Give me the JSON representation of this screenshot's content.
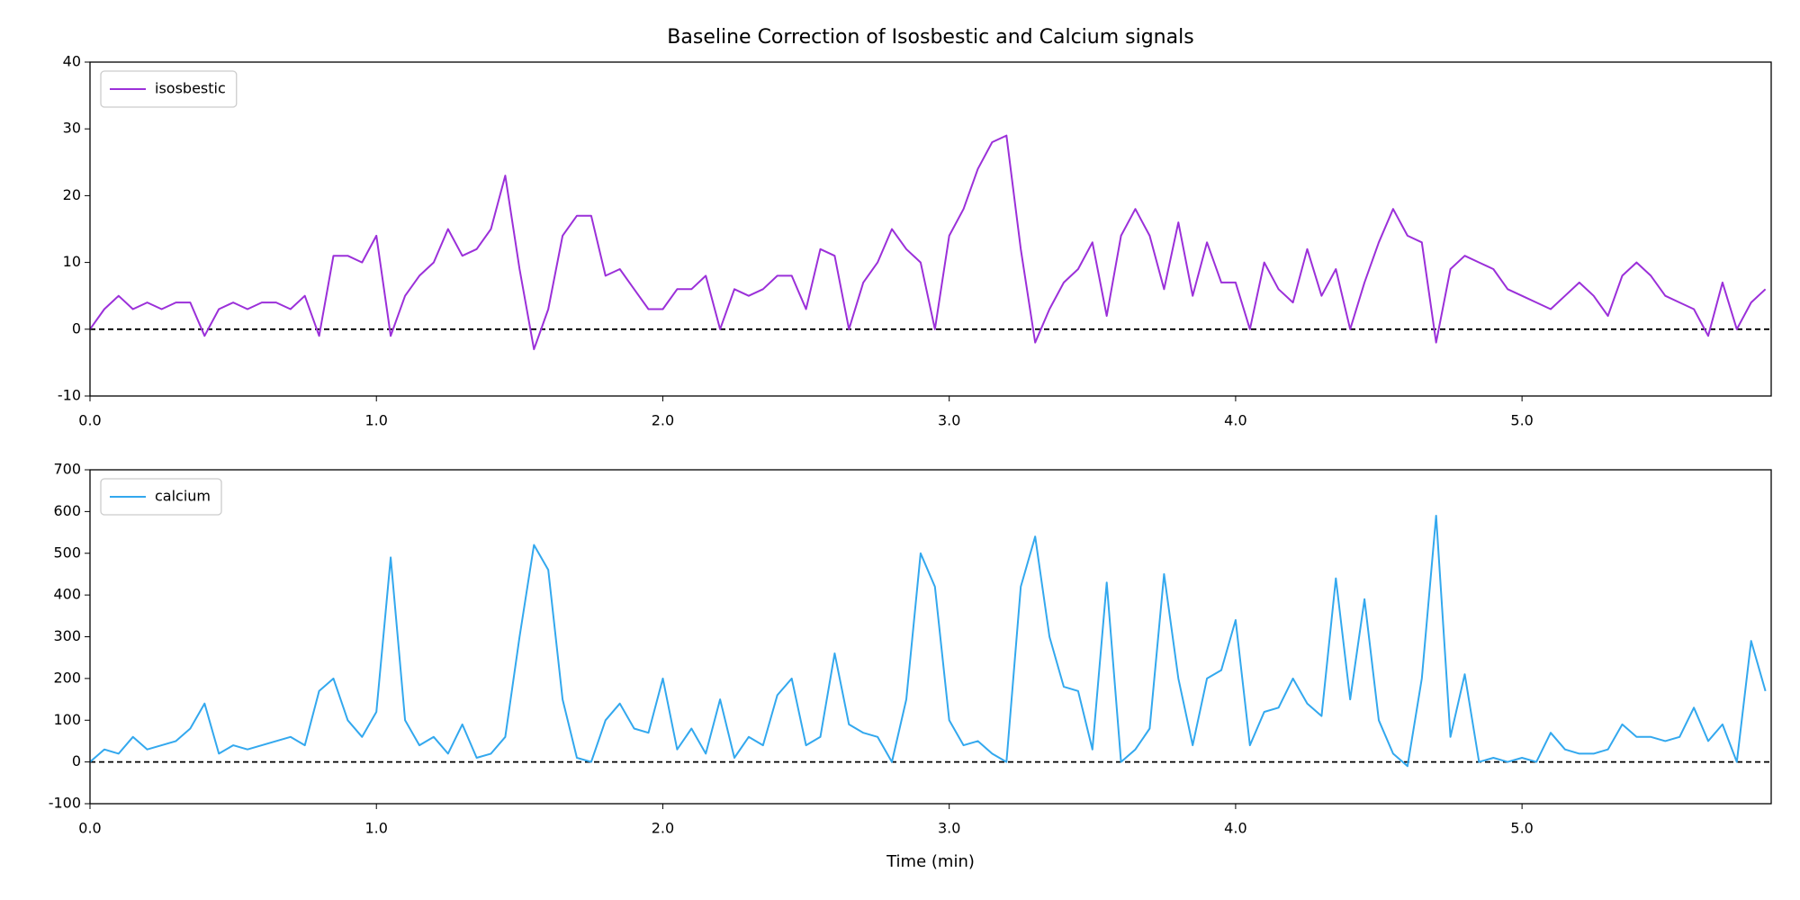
{
  "chart_data": [
    {
      "type": "line",
      "title": "Baseline Correction of Isosbestic and Calcium signals",
      "x": [
        0,
        0.05,
        0.1,
        0.15,
        0.2,
        0.25,
        0.3,
        0.35,
        0.4,
        0.45,
        0.5,
        0.55,
        0.6,
        0.65,
        0.7,
        0.75,
        0.8,
        0.85,
        0.9,
        0.95,
        1.0,
        1.05,
        1.1,
        1.15,
        1.2,
        1.25,
        1.3,
        1.35,
        1.4,
        1.45,
        1.5,
        1.55,
        1.6,
        1.65,
        1.7,
        1.75,
        1.8,
        1.85,
        1.9,
        1.95,
        2.0,
        2.05,
        2.1,
        2.15,
        2.2,
        2.25,
        2.3,
        2.35,
        2.4,
        2.45,
        2.5,
        2.55,
        2.6,
        2.65,
        2.7,
        2.75,
        2.8,
        2.85,
        2.9,
        2.95,
        3.0,
        3.05,
        3.1,
        3.15,
        3.2,
        3.25,
        3.3,
        3.35,
        3.4,
        3.45,
        3.5,
        3.55,
        3.6,
        3.65,
        3.7,
        3.75,
        3.8,
        3.85,
        3.9,
        3.95,
        4.0,
        4.05,
        4.1,
        4.15,
        4.2,
        4.25,
        4.3,
        4.35,
        4.4,
        4.45,
        4.5,
        4.55,
        4.6,
        4.65,
        4.7,
        4.75,
        4.8,
        4.85,
        4.9,
        4.95,
        5.0,
        5.05,
        5.1,
        5.15,
        5.2,
        5.25,
        5.3,
        5.35,
        5.4,
        5.45,
        5.5,
        5.55,
        5.6,
        5.65,
        5.7,
        5.75,
        5.8,
        5.85
      ],
      "series": [
        {
          "name": "isosbestic",
          "color": "#9b30d9",
          "values": [
            0,
            3,
            5,
            3,
            4,
            3,
            4,
            4,
            -1,
            3,
            4,
            3,
            4,
            4,
            3,
            5,
            -1,
            11,
            11,
            10,
            14,
            -1,
            5,
            8,
            10,
            15,
            11,
            12,
            15,
            23,
            9,
            -3,
            3,
            14,
            17,
            17,
            8,
            9,
            6,
            3,
            3,
            6,
            6,
            8,
            0,
            6,
            5,
            6,
            8,
            8,
            3,
            12,
            11,
            0,
            7,
            10,
            15,
            12,
            10,
            0,
            14,
            18,
            24,
            28,
            29,
            12,
            -2,
            3,
            7,
            9,
            13,
            2,
            14,
            18,
            14,
            6,
            16,
            5,
            13,
            7,
            7,
            0,
            10,
            6,
            4,
            12,
            5,
            9,
            0,
            7,
            13,
            18,
            14,
            13,
            -2,
            9,
            11,
            10,
            9,
            6,
            5,
            4,
            3,
            5,
            7,
            5,
            2,
            8,
            10,
            8,
            5,
            4,
            3,
            -1,
            7,
            0,
            4,
            6
          ]
        }
      ],
      "baseline": 0,
      "legend": "upper left",
      "xlim": [
        0,
        5.87
      ],
      "xticks": [
        {
          "value": 0,
          "label": "0.0"
        },
        {
          "value": 1,
          "label": "1.0"
        },
        {
          "value": 2,
          "label": "2.0"
        },
        {
          "value": 3,
          "label": "3.0"
        },
        {
          "value": 4,
          "label": "4.0"
        },
        {
          "value": 5,
          "label": "5.0"
        }
      ],
      "ylim": [
        -10,
        40
      ],
      "yticks": [
        -10,
        0,
        10,
        20,
        30,
        40
      ],
      "grid": false
    },
    {
      "type": "line",
      "x_label": "Time (min)",
      "x": [
        0,
        0.05,
        0.1,
        0.15,
        0.2,
        0.25,
        0.3,
        0.35,
        0.4,
        0.45,
        0.5,
        0.55,
        0.6,
        0.65,
        0.7,
        0.75,
        0.8,
        0.85,
        0.9,
        0.95,
        1.0,
        1.05,
        1.1,
        1.15,
        1.2,
        1.25,
        1.3,
        1.35,
        1.4,
        1.45,
        1.5,
        1.55,
        1.6,
        1.65,
        1.7,
        1.75,
        1.8,
        1.85,
        1.9,
        1.95,
        2.0,
        2.05,
        2.1,
        2.15,
        2.2,
        2.25,
        2.3,
        2.35,
        2.4,
        2.45,
        2.5,
        2.55,
        2.6,
        2.65,
        2.7,
        2.75,
        2.8,
        2.85,
        2.9,
        2.95,
        3.0,
        3.05,
        3.1,
        3.15,
        3.2,
        3.25,
        3.3,
        3.35,
        3.4,
        3.45,
        3.5,
        3.55,
        3.6,
        3.65,
        3.7,
        3.75,
        3.8,
        3.85,
        3.9,
        3.95,
        4.0,
        4.05,
        4.1,
        4.15,
        4.2,
        4.25,
        4.3,
        4.35,
        4.4,
        4.45,
        4.5,
        4.55,
        4.6,
        4.65,
        4.7,
        4.75,
        4.8,
        4.85,
        4.9,
        4.95,
        5.0,
        5.05,
        5.1,
        5.15,
        5.2,
        5.25,
        5.3,
        5.35,
        5.4,
        5.45,
        5.5,
        5.55,
        5.6,
        5.65,
        5.7,
        5.75,
        5.8,
        5.85
      ],
      "series": [
        {
          "name": "calcium",
          "color": "#33a8ee",
          "values": [
            0,
            30,
            20,
            60,
            30,
            40,
            50,
            80,
            140,
            20,
            40,
            30,
            40,
            50,
            60,
            40,
            170,
            200,
            100,
            60,
            120,
            490,
            100,
            40,
            60,
            20,
            90,
            10,
            20,
            60,
            300,
            520,
            460,
            150,
            10,
            0,
            100,
            140,
            80,
            70,
            200,
            30,
            80,
            20,
            150,
            10,
            60,
            40,
            160,
            200,
            40,
            60,
            260,
            90,
            70,
            60,
            0,
            150,
            500,
            420,
            100,
            40,
            50,
            20,
            0,
            420,
            540,
            300,
            180,
            170,
            30,
            430,
            0,
            30,
            80,
            450,
            200,
            40,
            200,
            220,
            340,
            40,
            120,
            130,
            200,
            140,
            110,
            440,
            150,
            390,
            100,
            20,
            -10,
            200,
            590,
            60,
            210,
            0,
            10,
            0,
            10,
            0,
            70,
            30,
            20,
            20,
            30,
            90,
            60,
            60,
            50,
            60,
            130,
            50,
            90,
            0,
            290,
            170
          ]
        }
      ],
      "baseline": 0,
      "legend": "upper left",
      "xlim": [
        0,
        5.87
      ],
      "xticks": [
        {
          "value": 0,
          "label": "0.0"
        },
        {
          "value": 1,
          "label": "1.0"
        },
        {
          "value": 2,
          "label": "2.0"
        },
        {
          "value": 3,
          "label": "3.0"
        },
        {
          "value": 4,
          "label": "4.0"
        },
        {
          "value": 5,
          "label": "5.0"
        }
      ],
      "ylim": [
        -100,
        700
      ],
      "yticks": [
        -100,
        0,
        100,
        200,
        300,
        400,
        500,
        600,
        700
      ],
      "grid": false
    }
  ]
}
